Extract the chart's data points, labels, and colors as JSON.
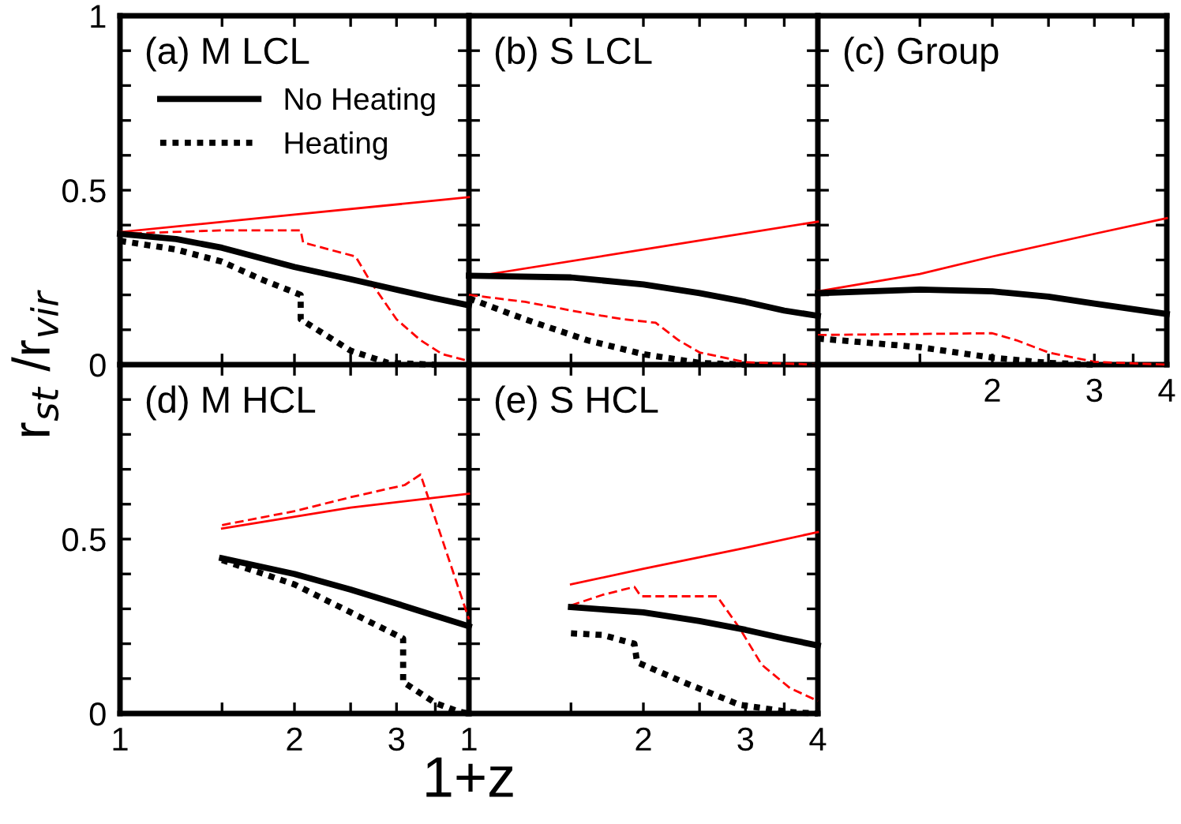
{
  "chart_data": [
    {
      "type": "line",
      "title": "(a) M LCL",
      "ylabel": "r$_{st}$ /r$_{vir}$",
      "log": "x",
      "xlim": [
        1,
        4
      ],
      "ylim": [
        0,
        1
      ],
      "legend": "top left",
      "tick_labels": "y",
      "xticks": [
        1,
        {
          "value": 1.5,
          "label": null
        },
        2,
        {
          "value": 2.5,
          "label": null
        },
        3,
        {
          "value": 3.5,
          "label": null
        },
        4
      ],
      "yticks": [
        0,
        {
          "value": 0.1,
          "label": null
        },
        {
          "value": 0.2,
          "label": null
        },
        {
          "value": 0.3,
          "label": null
        },
        {
          "value": 0.4,
          "label": null
        },
        0.5,
        {
          "value": 0.6,
          "label": null
        },
        {
          "value": 0.7,
          "label": null
        },
        {
          "value": 0.8,
          "label": null
        },
        {
          "value": 0.9,
          "label": null
        },
        1
      ],
      "series": [
        {
          "color": "#ff0000",
          "line_style": "solid",
          "x": [
            1,
            2,
            4
          ],
          "values": [
            0.38,
            0.43,
            0.48
          ]
        },
        {
          "color": "#ff0000",
          "line_style": "dashed",
          "x": [
            1,
            1.5,
            2.05,
            2.07,
            2.55,
            2.7,
            3,
            3.3,
            3.6,
            4
          ],
          "values": [
            0.375,
            0.385,
            0.385,
            0.35,
            0.31,
            0.24,
            0.13,
            0.07,
            0.03,
            0.01
          ]
        },
        {
          "name": "No Heating",
          "color": "#000000",
          "line_style": "solid",
          "x": [
            1,
            1.25,
            1.5,
            2,
            2.5,
            3,
            3.5,
            4
          ],
          "values": [
            0.375,
            0.36,
            0.335,
            0.28,
            0.245,
            0.215,
            0.19,
            0.17
          ]
        },
        {
          "name": "Heating",
          "color": "#000000",
          "line_style": "dotted",
          "x": [
            1,
            1.25,
            1.5,
            1.75,
            2.05,
            2.05,
            2.5,
            2.9,
            3.5
          ],
          "values": [
            0.355,
            0.33,
            0.295,
            0.245,
            0.2,
            0.13,
            0.04,
            0.005,
            0
          ]
        }
      ]
    },
    {
      "type": "line",
      "title": "(b) S LCL",
      "log": "x",
      "xlim": [
        1,
        4
      ],
      "ylim": [
        0,
        1
      ],
      "tick_labels": false,
      "xticks": [
        1,
        {
          "value": 1.5,
          "label": null
        },
        2,
        {
          "value": 2.5,
          "label": null
        },
        3,
        {
          "value": 3.5,
          "label": null
        },
        4
      ],
      "yticks": [
        0,
        {
          "value": 0.1,
          "label": null
        },
        {
          "value": 0.2,
          "label": null
        },
        {
          "value": 0.3,
          "label": null
        },
        {
          "value": 0.4,
          "label": null
        },
        0.5,
        {
          "value": 0.6,
          "label": null
        },
        {
          "value": 0.7,
          "label": null
        },
        {
          "value": 0.8,
          "label": null
        },
        {
          "value": 0.9,
          "label": null
        },
        1
      ],
      "series": [
        {
          "color": "#ff0000",
          "line_style": "solid",
          "x": [
            1,
            2,
            4
          ],
          "values": [
            0.25,
            0.33,
            0.41
          ]
        },
        {
          "color": "#ff0000",
          "line_style": "dashed",
          "x": [
            1,
            1.25,
            1.56,
            1.85,
            2.1,
            2.3,
            2.5,
            3,
            4
          ],
          "values": [
            0.2,
            0.18,
            0.15,
            0.13,
            0.12,
            0.07,
            0.035,
            0.007,
            0
          ]
        },
        {
          "color": "#000000",
          "line_style": "solid",
          "x": [
            1,
            1.5,
            2,
            2.5,
            3,
            3.5,
            4
          ],
          "values": [
            0.255,
            0.25,
            0.23,
            0.205,
            0.18,
            0.155,
            0.14
          ]
        },
        {
          "color": "#000000",
          "line_style": "dotted",
          "x": [
            1,
            1.25,
            1.6,
            2,
            2.5,
            3
          ],
          "values": [
            0.19,
            0.13,
            0.07,
            0.03,
            0.005,
            0
          ]
        }
      ]
    },
    {
      "type": "line",
      "title": "(c) Group",
      "log": "x",
      "xlim": [
        1,
        4
      ],
      "ylim": [
        0,
        1
      ],
      "tick_labels": "x",
      "xticks": [
        {
          "value": 1,
          "label": null
        },
        {
          "value": 1.5,
          "label": null
        },
        2,
        {
          "value": 2.5,
          "label": null
        },
        3,
        {
          "value": 3.5,
          "label": null
        },
        4
      ],
      "yticks": [
        0,
        {
          "value": 0.1,
          "label": null
        },
        {
          "value": 0.2,
          "label": null
        },
        {
          "value": 0.3,
          "label": null
        },
        {
          "value": 0.4,
          "label": null
        },
        0.5,
        {
          "value": 0.6,
          "label": null
        },
        {
          "value": 0.7,
          "label": null
        },
        {
          "value": 0.8,
          "label": null
        },
        {
          "value": 0.9,
          "label": null
        },
        1
      ],
      "series": [
        {
          "color": "#ff0000",
          "line_style": "solid",
          "x": [
            1,
            1.5,
            2,
            3,
            4
          ],
          "values": [
            0.21,
            0.26,
            0.31,
            0.375,
            0.42
          ]
        },
        {
          "color": "#ff0000",
          "line_style": "dashed",
          "x": [
            1,
            2,
            2.2,
            2.5,
            3,
            4
          ],
          "values": [
            0.085,
            0.09,
            0.07,
            0.035,
            0.008,
            0
          ]
        },
        {
          "color": "#000000",
          "line_style": "solid",
          "x": [
            1,
            1.5,
            2,
            2.5,
            3,
            4
          ],
          "values": [
            0.205,
            0.215,
            0.21,
            0.195,
            0.175,
            0.145
          ]
        },
        {
          "color": "#000000",
          "line_style": "dotted",
          "x": [
            1,
            1.5,
            2,
            2.5,
            3
          ],
          "values": [
            0.075,
            0.05,
            0.02,
            0.005,
            0
          ]
        }
      ]
    },
    {
      "type": "line",
      "title": "(d) M HCL",
      "xlabel": "1+z",
      "log": "x",
      "xlim": [
        1,
        4
      ],
      "ylim": [
        0,
        1
      ],
      "xticks": [
        1,
        {
          "value": 1.5,
          "label": null
        },
        2,
        {
          "value": 2.5,
          "label": null
        },
        3,
        {
          "value": 3.5,
          "label": null
        },
        {
          "value": 4,
          "label": null
        }
      ],
      "yticks": [
        0,
        {
          "value": 0.1,
          "label": null
        },
        {
          "value": 0.2,
          "label": null
        },
        {
          "value": 0.3,
          "label": null
        },
        {
          "value": 0.4,
          "label": null
        },
        0.5,
        {
          "value": 0.6,
          "label": null
        },
        {
          "value": 0.7,
          "label": null
        },
        {
          "value": 0.8,
          "label": null
        },
        {
          "value": 0.9,
          "label": null
        },
        {
          "value": 1,
          "label": null
        }
      ],
      "series": [
        {
          "color": "#ff0000",
          "line_style": "solid",
          "x": [
            1.5,
            2.5,
            4
          ],
          "values": [
            0.53,
            0.59,
            0.63
          ]
        },
        {
          "color": "#ff0000",
          "line_style": "dashed",
          "x": [
            1.5,
            2,
            2.5,
            3.1,
            3.3,
            4
          ],
          "values": [
            0.54,
            0.58,
            0.62,
            0.655,
            0.685,
            0.27
          ]
        },
        {
          "color": "#000000",
          "line_style": "solid",
          "x": [
            1.5,
            2,
            2.5,
            3,
            3.5,
            4
          ],
          "values": [
            0.445,
            0.4,
            0.355,
            0.315,
            0.28,
            0.25
          ]
        },
        {
          "color": "#000000",
          "line_style": "dotted",
          "x": [
            1.5,
            2,
            2.5,
            3.08,
            3.08,
            3.5,
            3.85,
            4
          ],
          "values": [
            0.44,
            0.37,
            0.29,
            0.215,
            0.09,
            0.03,
            0.005,
            0
          ]
        }
      ]
    },
    {
      "type": "line",
      "title": "(e) S HCL",
      "log": "x",
      "xlim": [
        1,
        4
      ],
      "ylim": [
        0,
        1
      ],
      "tick_labels": "x",
      "xticks": [
        1,
        {
          "value": 1.5,
          "label": null
        },
        2,
        {
          "value": 2.5,
          "label": null
        },
        3,
        {
          "value": 3.5,
          "label": null
        },
        4
      ],
      "yticks": [
        0,
        {
          "value": 0.1,
          "label": null
        },
        {
          "value": 0.2,
          "label": null
        },
        {
          "value": 0.3,
          "label": null
        },
        {
          "value": 0.4,
          "label": null
        },
        0.5,
        {
          "value": 0.6,
          "label": null
        },
        {
          "value": 0.7,
          "label": null
        },
        {
          "value": 0.8,
          "label": null
        },
        {
          "value": 0.9,
          "label": null
        },
        1
      ],
      "series": [
        {
          "color": "#ff0000",
          "line_style": "solid",
          "x": [
            1.5,
            2,
            3,
            4
          ],
          "values": [
            0.37,
            0.415,
            0.475,
            0.52
          ]
        },
        {
          "color": "#ff0000",
          "line_style": "dashed",
          "x": [
            1.5,
            1.7,
            1.93,
            1.98,
            2.68,
            2.93,
            3.2,
            3.58,
            4
          ],
          "values": [
            0.31,
            0.34,
            0.363,
            0.336,
            0.336,
            0.245,
            0.14,
            0.073,
            0.036
          ]
        },
        {
          "color": "#000000",
          "line_style": "solid",
          "x": [
            1.5,
            2,
            2.5,
            3,
            3.5,
            4
          ],
          "values": [
            0.305,
            0.29,
            0.265,
            0.24,
            0.215,
            0.195
          ]
        },
        {
          "color": "#000000",
          "line_style": "dotted",
          "x": [
            1.5,
            1.7,
            1.93,
            1.95,
            2.36,
            2.93,
            3.58,
            4
          ],
          "values": [
            0.23,
            0.225,
            0.2,
            0.147,
            0.088,
            0.025,
            0.004,
            0
          ]
        }
      ]
    }
  ]
}
